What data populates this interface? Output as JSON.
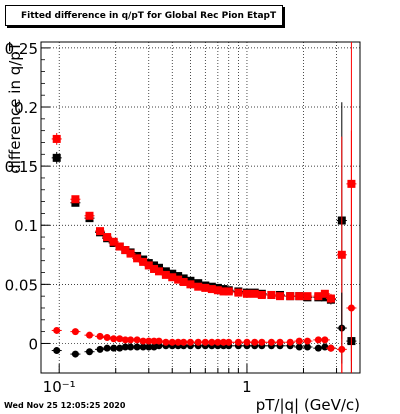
{
  "title": "Fitted difference in q/pT for Global Rec Pion EtapT",
  "footer_timestamp": "Wed Nov 25 12:05:25 2020",
  "chart_data": {
    "type": "scatter",
    "title": "Fitted difference in q/pT for Global Rec Pion EtapT",
    "xlabel": "pT/|q| (GeV/c)",
    "ylabel": "difference in q/pT",
    "xscale": "log",
    "xlim": [
      0.08,
      4.0
    ],
    "ylim": [
      -0.025,
      0.255
    ],
    "grid": true,
    "x_tick_labels": [
      {
        "v": 0.1,
        "t": "10⁻¹"
      },
      {
        "v": 1,
        "t": "1"
      }
    ],
    "y_tick_labels": [
      {
        "v": 0,
        "t": "0"
      },
      {
        "v": 0.05,
        "t": "0.05"
      },
      {
        "v": 0.1,
        "t": "0.1"
      },
      {
        "v": 0.15,
        "t": "0.15"
      },
      {
        "v": 0.2,
        "t": "0.2"
      },
      {
        "v": 0.25,
        "t": "0.25"
      }
    ],
    "colors": {
      "series_black": "#000000",
      "series_red": "#ff0000"
    },
    "series": [
      {
        "marker": "square",
        "color": "#000000",
        "x": [
          0.097,
          0.122,
          0.145,
          0.165,
          0.18,
          0.195,
          0.21,
          0.225,
          0.24,
          0.26,
          0.28,
          0.3,
          0.32,
          0.34,
          0.37,
          0.4,
          0.43,
          0.46,
          0.5,
          0.55,
          0.6,
          0.65,
          0.7,
          0.75,
          0.8,
          0.9,
          1.0,
          1.1,
          1.2,
          1.35,
          1.5,
          1.7,
          1.9,
          2.1,
          2.4,
          2.6,
          2.8,
          3.2,
          3.6
        ],
        "y": [
          0.157,
          0.119,
          0.106,
          0.094,
          0.089,
          0.085,
          0.082,
          0.079,
          0.077,
          0.074,
          0.071,
          0.068,
          0.066,
          0.064,
          0.061,
          0.059,
          0.057,
          0.055,
          0.053,
          0.051,
          0.049,
          0.048,
          0.047,
          0.046,
          0.045,
          0.044,
          0.043,
          0.043,
          0.042,
          0.041,
          0.041,
          0.04,
          0.04,
          0.039,
          0.039,
          0.039,
          0.037,
          0.104,
          0.002
        ],
        "err": [
          0.005,
          0.003,
          0.002,
          0.002,
          0.002,
          0.002,
          0.001,
          0.001,
          0.001,
          0.001,
          0.001,
          0.001,
          0.001,
          0.001,
          0.001,
          0.001,
          0.001,
          0.001,
          0.001,
          0.001,
          0.001,
          0.001,
          0.001,
          0.001,
          0.001,
          0.001,
          0.001,
          0.001,
          0.001,
          0.001,
          0.001,
          0.001,
          0.001,
          0.002,
          0.002,
          0.003,
          0.004,
          0.1,
          0.03
        ]
      },
      {
        "marker": "square",
        "color": "#ff0000",
        "x": [
          0.097,
          0.122,
          0.145,
          0.165,
          0.18,
          0.195,
          0.21,
          0.225,
          0.24,
          0.26,
          0.28,
          0.3,
          0.32,
          0.34,
          0.37,
          0.4,
          0.43,
          0.46,
          0.5,
          0.55,
          0.6,
          0.65,
          0.7,
          0.75,
          0.8,
          0.9,
          1.0,
          1.1,
          1.2,
          1.35,
          1.5,
          1.7,
          1.9,
          2.1,
          2.4,
          2.6,
          2.8,
          3.2,
          3.6
        ],
        "y": [
          0.173,
          0.122,
          0.108,
          0.095,
          0.09,
          0.086,
          0.082,
          0.079,
          0.076,
          0.072,
          0.069,
          0.066,
          0.063,
          0.061,
          0.058,
          0.056,
          0.054,
          0.052,
          0.05,
          0.048,
          0.047,
          0.046,
          0.045,
          0.044,
          0.044,
          0.043,
          0.042,
          0.042,
          0.041,
          0.041,
          0.04,
          0.04,
          0.04,
          0.04,
          0.04,
          0.042,
          0.038,
          0.075,
          0.135
        ],
        "err": [
          0.005,
          0.003,
          0.002,
          0.002,
          0.002,
          0.002,
          0.001,
          0.001,
          0.001,
          0.001,
          0.001,
          0.001,
          0.001,
          0.001,
          0.001,
          0.001,
          0.001,
          0.001,
          0.001,
          0.001,
          0.001,
          0.001,
          0.001,
          0.001,
          0.001,
          0.001,
          0.001,
          0.001,
          0.001,
          0.001,
          0.001,
          0.001,
          0.001,
          0.002,
          0.002,
          0.003,
          0.004,
          0.1,
          0.15
        ]
      },
      {
        "marker": "circle",
        "color": "#000000",
        "x": [
          0.097,
          0.122,
          0.145,
          0.165,
          0.18,
          0.195,
          0.21,
          0.225,
          0.24,
          0.26,
          0.28,
          0.3,
          0.32,
          0.34,
          0.37,
          0.4,
          0.43,
          0.46,
          0.5,
          0.55,
          0.6,
          0.65,
          0.7,
          0.75,
          0.8,
          0.9,
          1.0,
          1.1,
          1.2,
          1.35,
          1.5,
          1.7,
          1.9,
          2.1,
          2.4,
          2.6,
          2.8,
          3.2,
          3.6
        ],
        "y": [
          -0.006,
          -0.009,
          -0.007,
          -0.005,
          -0.004,
          -0.004,
          -0.004,
          -0.003,
          -0.003,
          -0.003,
          -0.003,
          -0.003,
          -0.003,
          -0.002,
          -0.002,
          -0.002,
          -0.002,
          -0.002,
          -0.002,
          -0.002,
          -0.002,
          -0.002,
          -0.002,
          -0.002,
          -0.002,
          -0.002,
          -0.002,
          -0.002,
          -0.002,
          -0.002,
          -0.002,
          -0.002,
          -0.003,
          -0.003,
          -0.004,
          -0.003,
          -0.004,
          0.013,
          null
        ],
        "err": [
          0.002,
          0.002,
          0.001,
          0.001,
          0.001,
          0.001,
          0.001,
          0.001,
          0.001,
          0.001,
          0.001,
          0.001,
          0.001,
          0.001,
          0.001,
          0.001,
          0.001,
          0.001,
          0.001,
          0.001,
          0.001,
          0.001,
          0.001,
          0.001,
          0.001,
          0.001,
          0.001,
          0.001,
          0.001,
          0.001,
          0.001,
          0.001,
          0.001,
          0.001,
          0.002,
          0.002,
          0.003,
          0.03,
          null
        ]
      },
      {
        "marker": "circle",
        "color": "#ff0000",
        "x": [
          0.097,
          0.122,
          0.145,
          0.165,
          0.18,
          0.195,
          0.21,
          0.225,
          0.24,
          0.26,
          0.28,
          0.3,
          0.32,
          0.34,
          0.37,
          0.4,
          0.43,
          0.46,
          0.5,
          0.55,
          0.6,
          0.65,
          0.7,
          0.75,
          0.8,
          0.9,
          1.0,
          1.1,
          1.2,
          1.35,
          1.5,
          1.7,
          1.9,
          2.1,
          2.4,
          2.6,
          2.8,
          3.2,
          3.6
        ],
        "y": [
          0.011,
          0.01,
          0.007,
          0.006,
          0.005,
          0.004,
          0.004,
          0.003,
          0.003,
          0.003,
          0.002,
          0.002,
          0.002,
          0.002,
          0.001,
          0.001,
          0.001,
          0.001,
          0.001,
          0.001,
          0.001,
          0.001,
          0.001,
          0.001,
          0.001,
          0.001,
          0.001,
          0.001,
          0.001,
          0.001,
          0.001,
          0.001,
          0.002,
          0.002,
          0.003,
          0.003,
          -0.004,
          -0.005,
          0.03
        ],
        "err": [
          0.002,
          0.002,
          0.001,
          0.001,
          0.001,
          0.001,
          0.001,
          0.001,
          0.001,
          0.001,
          0.001,
          0.001,
          0.001,
          0.001,
          0.001,
          0.001,
          0.001,
          0.001,
          0.001,
          0.001,
          0.001,
          0.001,
          0.001,
          0.001,
          0.001,
          0.001,
          0.001,
          0.001,
          0.001,
          0.001,
          0.001,
          0.001,
          0.001,
          0.001,
          0.002,
          0.002,
          0.003,
          0.02,
          0.15
        ]
      }
    ]
  }
}
